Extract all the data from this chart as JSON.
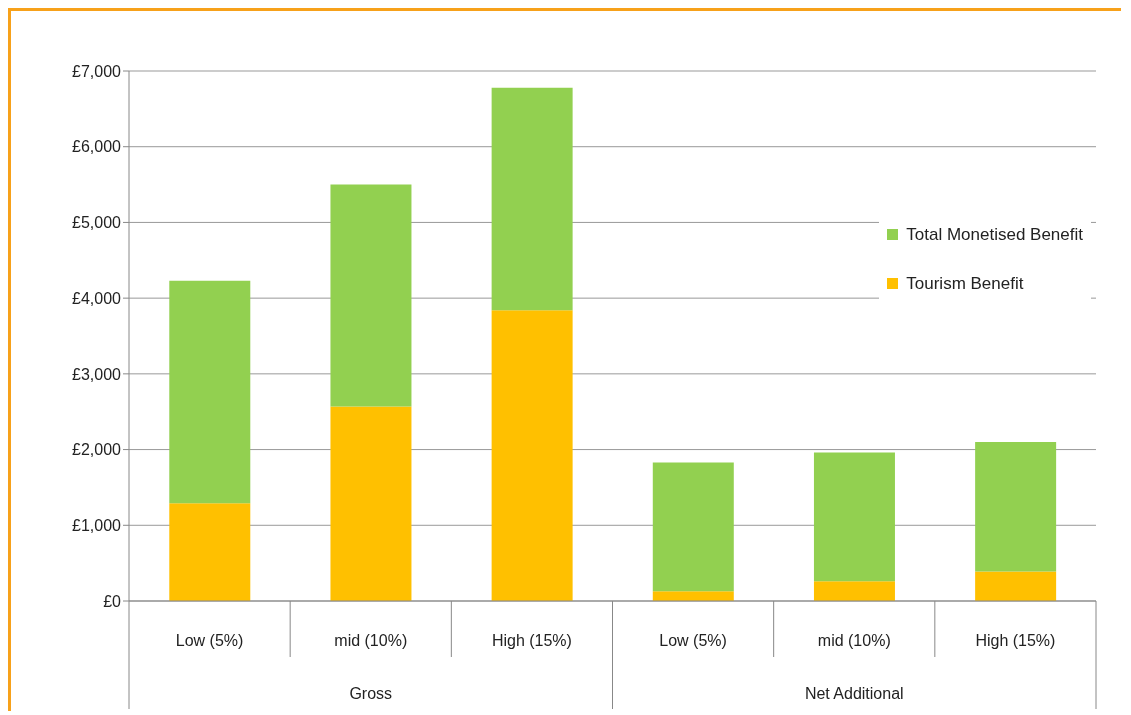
{
  "chart_data": {
    "type": "bar",
    "stacked": true,
    "categories": [
      "Low (5%)",
      "mid (10%)",
      "High (15%)",
      "Low (5%)",
      "mid (10%)",
      "High (15%)"
    ],
    "series": [
      {
        "name": "Tourism Benefit",
        "color": "#ffc000",
        "values": [
          1290,
          2570,
          3840,
          130,
          260,
          390
        ]
      },
      {
        "name": "Total Monetised Benefit",
        "color": "#92d050",
        "values": [
          2940,
          2930,
          2940,
          1700,
          1700,
          1710
        ]
      }
    ],
    "ylim": [
      0,
      7000
    ],
    "yticks": [
      {
        "value": 0,
        "label": "£0"
      },
      {
        "value": 1000,
        "label": "£1,000"
      },
      {
        "value": 2000,
        "label": "£2,000"
      },
      {
        "value": 3000,
        "label": "£3,000"
      },
      {
        "value": 4000,
        "label": "£4,000"
      },
      {
        "value": 5000,
        "label": "£5,000"
      },
      {
        "value": 6000,
        "label": "£6,000"
      },
      {
        "value": 7000,
        "label": "£7,000"
      }
    ],
    "grid": "y",
    "legend": "right",
    "annotations": [
      "Gross",
      "Net Additional"
    ]
  }
}
